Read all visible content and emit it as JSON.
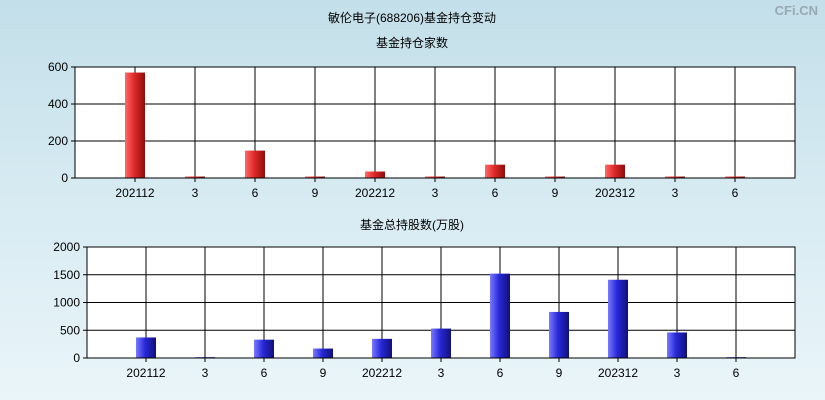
{
  "title": "敏伦电子(688206)基金持仓变动",
  "watermark": "CFi.CN",
  "colors": {
    "top_bar": "#e02a2a",
    "bottom_bar": "#2828d8",
    "grid": "#000000"
  },
  "chart_data": [
    {
      "type": "bar",
      "title": "基金持仓家数",
      "categories": [
        "202112",
        "3",
        "6",
        "9",
        "202212",
        "3",
        "6",
        "9",
        "202312",
        "3",
        "6"
      ],
      "values": [
        570,
        8,
        148,
        8,
        35,
        8,
        72,
        8,
        72,
        8,
        8
      ],
      "yticks": [
        0,
        200,
        400,
        600
      ],
      "ylim": [
        0,
        600
      ],
      "grid": true
    },
    {
      "type": "bar",
      "title": "基金总持股数(万股)",
      "categories": [
        "202112",
        "3",
        "6",
        "9",
        "202212",
        "3",
        "6",
        "9",
        "202312",
        "3",
        "6"
      ],
      "values": [
        370,
        15,
        330,
        170,
        345,
        530,
        1520,
        830,
        1410,
        460,
        15
      ],
      "yticks": [
        0,
        500,
        1000,
        1500,
        2000
      ],
      "ylim": [
        0,
        2000
      ],
      "grid": true
    }
  ]
}
